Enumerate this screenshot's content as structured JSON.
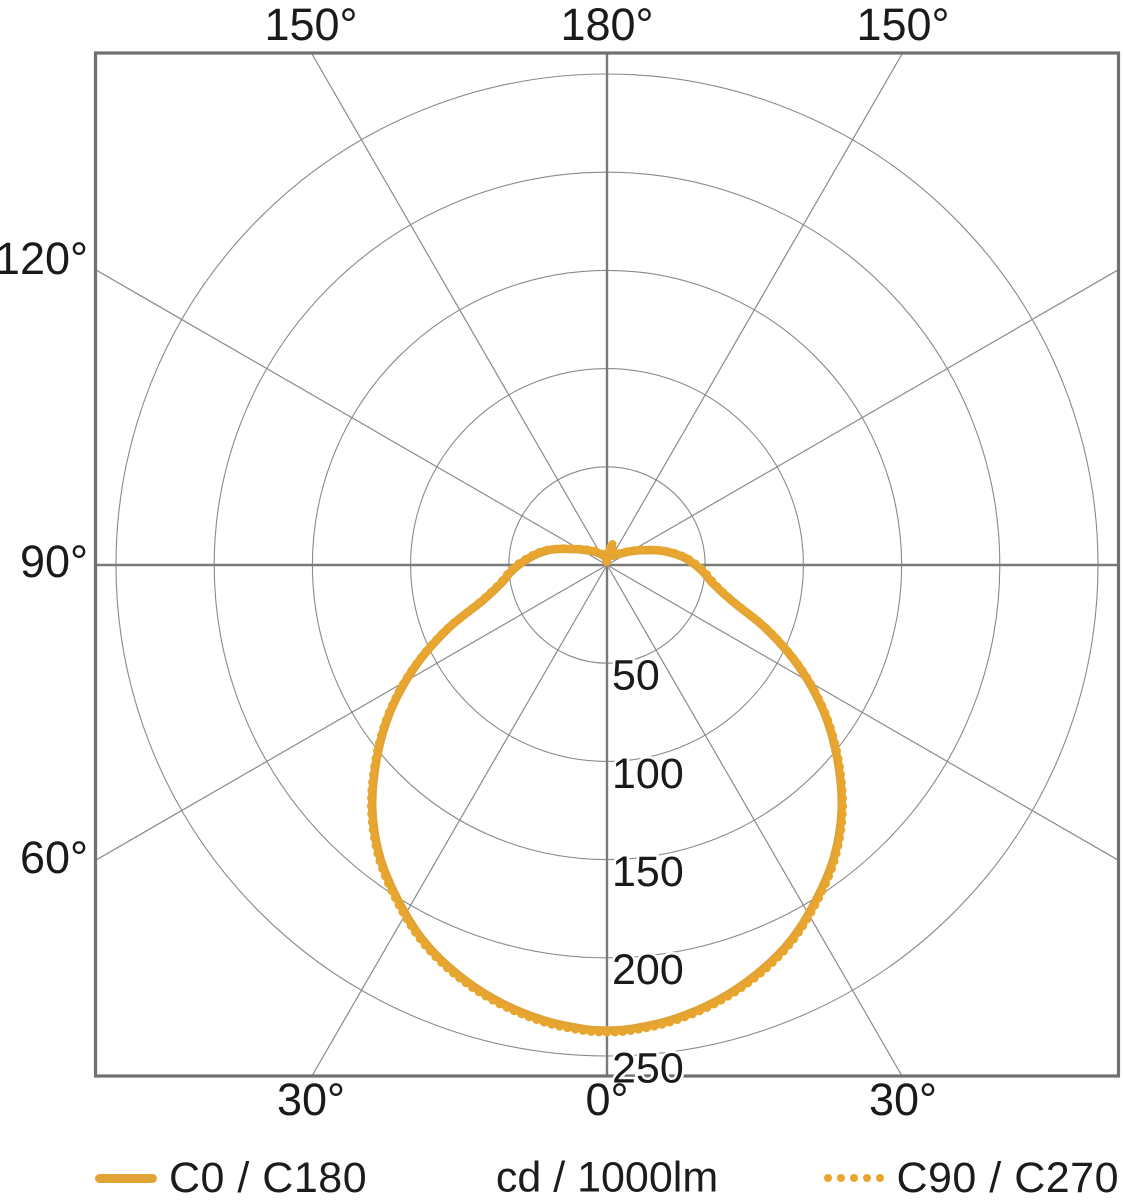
{
  "page": {
    "background": "#ffffff"
  },
  "legend": {
    "series1_label": "C0 / C180",
    "units_label": "cd / 1000lm",
    "series2_label": "C90 / C270"
  },
  "chart_data": {
    "type": "polar",
    "title": "",
    "units_label": "cd / 1000lm",
    "radial_ticks": [
      50,
      100,
      150,
      200,
      250
    ],
    "radial_tick_labels": [
      "50",
      "100",
      "150",
      "200",
      "250"
    ],
    "radial_axis_visible_max": 260,
    "angle_step_deg": 30,
    "angle_labels": {
      "top": [
        "150°",
        "180°",
        "150°"
      ],
      "left": [
        "120°",
        "90°",
        "60°"
      ],
      "bottom": [
        "30°",
        "0°",
        "30°"
      ]
    },
    "grid": true,
    "grid_color": "#8a8a8a",
    "axis_color": "#7a7a7a",
    "border_color": "#707070",
    "label_color": "#1a1a1a",
    "peak_intensity_cd_per_1000lm": 237,
    "peak_gamma_deg": 0,
    "series": [
      {
        "name": "C0 / C180",
        "style": "solid",
        "color": "#E2A336",
        "points": [
          [
            -178,
            1.5
          ],
          [
            -172,
            3
          ],
          [
            -165,
            4.5
          ],
          [
            -156,
            5.5
          ],
          [
            -147,
            7
          ],
          [
            -138,
            9
          ],
          [
            -128,
            12
          ],
          [
            -118,
            17
          ],
          [
            -110,
            24
          ],
          [
            -104,
            31
          ],
          [
            -98,
            37
          ],
          [
            -92,
            43
          ],
          [
            -90,
            45
          ],
          [
            -86,
            49
          ],
          [
            -80,
            55
          ],
          [
            -74,
            66
          ],
          [
            -68,
            88
          ],
          [
            -62,
            111
          ],
          [
            -56,
            133
          ],
          [
            -50,
            153
          ],
          [
            -44,
            172
          ],
          [
            -38,
            188
          ],
          [
            -32,
            201
          ],
          [
            -26,
            213
          ],
          [
            -20,
            222
          ],
          [
            -14,
            229
          ],
          [
            -8,
            234
          ],
          [
            -3,
            236.5
          ],
          [
            0,
            237
          ],
          [
            3,
            236.5
          ],
          [
            8,
            234
          ],
          [
            14,
            229
          ],
          [
            20,
            222
          ],
          [
            26,
            213
          ],
          [
            32,
            201
          ],
          [
            38,
            188
          ],
          [
            44,
            172
          ],
          [
            50,
            153
          ],
          [
            56,
            133
          ],
          [
            62,
            111
          ],
          [
            68,
            88
          ],
          [
            74,
            66
          ],
          [
            80,
            55
          ],
          [
            86,
            49
          ],
          [
            90,
            45
          ],
          [
            92,
            43
          ],
          [
            96,
            39
          ],
          [
            101,
            33
          ],
          [
            106,
            27
          ],
          [
            112,
            20
          ],
          [
            120,
            14
          ],
          [
            130,
            9
          ],
          [
            140,
            6.5
          ],
          [
            149,
            5.5
          ],
          [
            156,
            6
          ],
          [
            161,
            8
          ],
          [
            165,
            10
          ],
          [
            169,
            9
          ],
          [
            172,
            6
          ],
          [
            175,
            3.5
          ]
        ]
      },
      {
        "name": "C90 / C270",
        "style": "dotted",
        "color": "#E8A62F",
        "coincides_with": "C0 / C180"
      }
    ]
  }
}
